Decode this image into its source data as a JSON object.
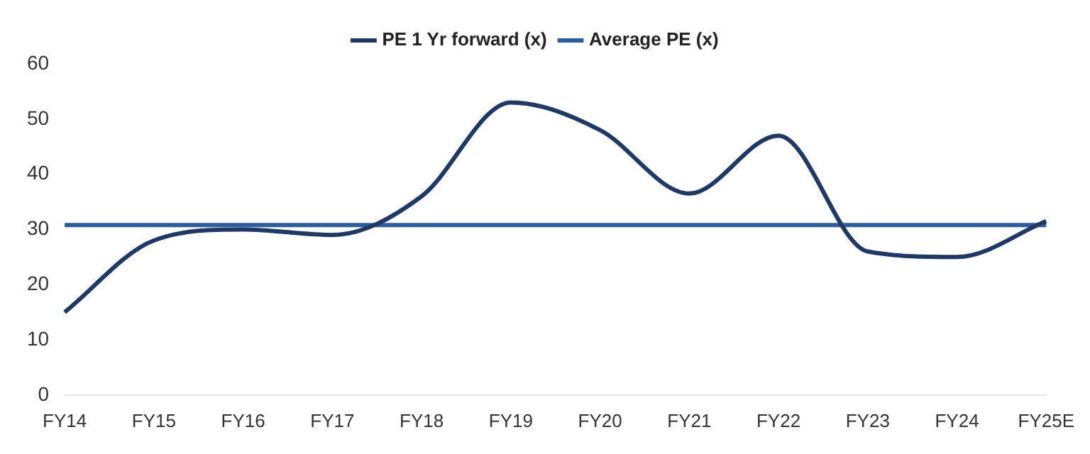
{
  "chart_data": {
    "type": "line",
    "categories": [
      "FY14",
      "FY15",
      "FY16",
      "FY17",
      "FY18",
      "FY19",
      "FY20",
      "FY21",
      "FY22",
      "FY23",
      "FY24",
      "FY25E"
    ],
    "series": [
      {
        "name": "PE 1 Yr forward (x)",
        "color": "#1f3864",
        "values": [
          15,
          28,
          30,
          29,
          36,
          53,
          48,
          36.5,
          47,
          26,
          25,
          31.5
        ]
      },
      {
        "name": "Average PE (x)",
        "color": "#2e5c9a",
        "values": [
          30.8,
          30.8,
          30.8,
          30.8,
          30.8,
          30.8,
          30.8,
          30.8,
          30.8,
          30.8,
          30.8,
          30.8
        ]
      }
    ],
    "ylim": [
      0,
      60
    ],
    "yticks": [
      0,
      10,
      20,
      30,
      40,
      50,
      60
    ],
    "grid": false,
    "legend": "top",
    "marker": "none",
    "line_style": "solid"
  }
}
